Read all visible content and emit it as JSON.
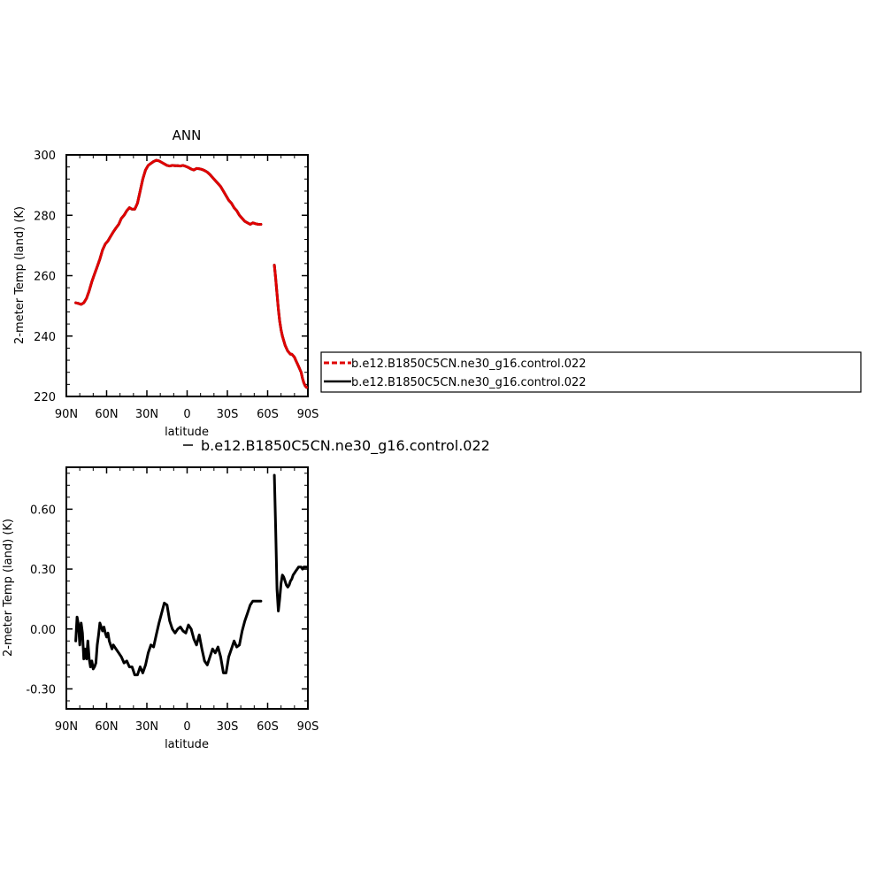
{
  "chart_data": [
    {
      "type": "line",
      "title": "ANN",
      "xlabel": "latitude",
      "ylabel": "2-meter Temp (land) (K)",
      "xlim": [
        90,
        -90
      ],
      "ylim": [
        220,
        300
      ],
      "xticks": [
        90,
        60,
        30,
        0,
        -30,
        -60,
        -90
      ],
      "xtick_labels": [
        "90N",
        "60N",
        "30N",
        "0",
        "30S",
        "60S",
        "90S"
      ],
      "yticks": [
        220,
        240,
        260,
        280,
        300
      ],
      "ytick_labels": [
        "220",
        "240",
        "260",
        "280",
        "300"
      ],
      "legend": {
        "placement": "right of plot",
        "entries": [
          {
            "label": "b.e12.B1850C5CN.ne30_g16.control.022",
            "color": "#e00000",
            "dash": "dashed"
          },
          {
            "label": "b.e12.B1850C5CN.ne30_g16.control.022",
            "color": "#000000",
            "dash": "solid"
          }
        ]
      },
      "series": [
        {
          "name": "b.e12.B1850C5CN.ne30_g16.control.022",
          "color": "#000000",
          "segments": [
            {
              "x": [
                83,
                81,
                79,
                77,
                75,
                73,
                71,
                69,
                67,
                65,
                63,
                61,
                59,
                57,
                55,
                53,
                51,
                49,
                47,
                45,
                43,
                41,
                39,
                37,
                35,
                33,
                31,
                29,
                27,
                25,
                23,
                21,
                19,
                17,
                15,
                13,
                11,
                9,
                7,
                5,
                3,
                1,
                -1,
                -3,
                -5,
                -7,
                -9,
                -11,
                -13,
                -15,
                -17,
                -19,
                -21,
                -23,
                -25,
                -27,
                -29,
                -31,
                -33,
                -35,
                -37,
                -39,
                -41,
                -43,
                -45,
                -47,
                -49,
                -51,
                -53,
                -55
              ],
              "y": [
                251,
                250.8,
                250.5,
                251,
                252.5,
                255,
                258,
                260.5,
                263,
                265.5,
                268.5,
                270.5,
                271.5,
                273,
                274.5,
                275.8,
                277,
                279,
                280,
                281.5,
                282.5,
                282,
                282,
                284,
                288,
                292,
                295,
                296.5,
                297.2,
                297.8,
                298.2,
                298,
                297.5,
                297,
                296.5,
                296.3,
                296.5,
                296.4,
                296.4,
                296.3,
                296.5,
                296.2,
                295.8,
                295.3,
                295,
                295.5,
                295.4,
                295.2,
                294.8,
                294.3,
                293.5,
                292.5,
                291.5,
                290.5,
                289.5,
                288,
                286.5,
                285,
                284,
                282.5,
                281.5,
                280,
                279,
                278,
                277.5,
                277,
                277.5,
                277.2,
                277,
                277
              ]
            },
            {
              "x": [
                -65,
                -66,
                -67,
                -68,
                -69,
                -70,
                -71,
                -72,
                -73,
                -74,
                -75,
                -76,
                -77,
                -78,
                -79,
                -80,
                -81,
                -82,
                -83,
                -84,
                -85,
                -86,
                -87,
                -88,
                -89
              ],
              "y": [
                263.5,
                259,
                254,
                249,
                245,
                242,
                240,
                238.5,
                237,
                236,
                235,
                234.5,
                234,
                234,
                233.5,
                233,
                232,
                231,
                230,
                229,
                228,
                226,
                224.5,
                223.5,
                223
              ]
            }
          ]
        },
        {
          "name": "b.e12.B1850C5CN.ne30_g16.control.022",
          "color": "#e00000",
          "dash": "dashed",
          "segments": [
            {
              "x": [
                83,
                81,
                79,
                77,
                75,
                73,
                71,
                69,
                67,
                65,
                63,
                61,
                59,
                57,
                55,
                53,
                51,
                49,
                47,
                45,
                43,
                41,
                39,
                37,
                35,
                33,
                31,
                29,
                27,
                25,
                23,
                21,
                19,
                17,
                15,
                13,
                11,
                9,
                7,
                5,
                3,
                1,
                -1,
                -3,
                -5,
                -7,
                -9,
                -11,
                -13,
                -15,
                -17,
                -19,
                -21,
                -23,
                -25,
                -27,
                -29,
                -31,
                -33,
                -35,
                -37,
                -39,
                -41,
                -43,
                -45,
                -47,
                -49,
                -51,
                -53,
                -55
              ],
              "y": [
                251,
                250.8,
                250.5,
                251,
                252.5,
                255,
                258,
                260.5,
                263,
                265.5,
                268.5,
                270.5,
                271.5,
                273,
                274.5,
                275.8,
                277,
                279,
                280,
                281.5,
                282.5,
                282,
                282,
                284,
                288,
                292,
                295,
                296.5,
                297.2,
                297.8,
                298.2,
                298,
                297.5,
                297,
                296.5,
                296.3,
                296.5,
                296.4,
                296.4,
                296.3,
                296.5,
                296.2,
                295.8,
                295.3,
                295,
                295.5,
                295.4,
                295.2,
                294.8,
                294.3,
                293.5,
                292.5,
                291.5,
                290.5,
                289.5,
                288,
                286.5,
                285,
                284,
                282.5,
                281.5,
                280,
                279,
                278,
                277.5,
                277,
                277.5,
                277.2,
                277,
                277
              ]
            },
            {
              "x": [
                -65,
                -66,
                -67,
                -68,
                -69,
                -70,
                -71,
                -72,
                -73,
                -74,
                -75,
                -76,
                -77,
                -78,
                -79,
                -80,
                -81,
                -82,
                -83,
                -84,
                -85,
                -86,
                -87,
                -88,
                -89
              ],
              "y": [
                263.5,
                259,
                254,
                249,
                245,
                242,
                240,
                238.5,
                237,
                236,
                235,
                234.5,
                234,
                234,
                233.5,
                233,
                232,
                231,
                230,
                229,
                228,
                226,
                224.5,
                223.5,
                223
              ]
            }
          ]
        }
      ]
    },
    {
      "type": "line",
      "title": "",
      "xlabel": "latitude",
      "ylabel": "2-meter Temp (land) (K)",
      "xlim": [
        90,
        -90
      ],
      "ylim": [
        -0.4,
        0.81
      ],
      "xticks": [
        90,
        60,
        30,
        0,
        -30,
        -60,
        -90
      ],
      "xtick_labels": [
        "90N",
        "60N",
        "30N",
        "0",
        "30S",
        "60S",
        "90S"
      ],
      "yticks": [
        -0.3,
        0.0,
        0.3,
        0.6
      ],
      "ytick_labels": [
        "-0.30",
        "0.00",
        "0.30",
        "0.60"
      ],
      "legend": {
        "placement": "above plot",
        "entries": [
          {
            "label": "b.e12.B1850C5CN.ne30_g16.control.022",
            "color": "#000000",
            "dash": "solid"
          }
        ]
      },
      "series": [
        {
          "name": "b.e12.B1850C5CN.ne30_g16.control.022",
          "color": "#000000",
          "segments": [
            {
              "x": [
                83,
                82,
                81,
                80,
                79,
                78,
                77,
                76,
                75,
                74,
                73,
                72,
                71,
                70,
                69,
                68,
                67,
                66,
                65,
                64,
                63,
                62,
                61,
                60,
                59,
                58,
                57,
                56,
                55,
                53,
                51,
                49,
                47,
                45,
                43,
                41,
                39,
                37,
                35,
                33,
                31,
                29,
                27,
                25,
                23,
                21,
                19,
                17,
                15,
                13,
                11,
                9,
                7,
                5,
                3,
                1,
                -1,
                -3,
                -5,
                -7,
                -9,
                -11,
                -13,
                -15,
                -17,
                -19,
                -21,
                -23,
                -25,
                -27,
                -29,
                -31,
                -33,
                -35,
                -37,
                -39,
                -41,
                -43,
                -45,
                -47,
                -49,
                -51,
                -53,
                -55
              ],
              "y": [
                -0.06,
                0.06,
                0.02,
                -0.08,
                0.03,
                -0.02,
                -0.15,
                -0.1,
                -0.15,
                -0.06,
                -0.15,
                -0.19,
                -0.16,
                -0.2,
                -0.19,
                -0.17,
                -0.08,
                -0.03,
                0.03,
                0.01,
                -0.01,
                0.01,
                -0.02,
                -0.04,
                -0.02,
                -0.06,
                -0.08,
                -0.1,
                -0.08,
                -0.1,
                -0.12,
                -0.14,
                -0.17,
                -0.16,
                -0.19,
                -0.19,
                -0.23,
                -0.23,
                -0.19,
                -0.22,
                -0.18,
                -0.12,
                -0.08,
                -0.09,
                -0.03,
                0.03,
                0.08,
                0.13,
                0.12,
                0.04,
                0.0,
                -0.02,
                0.0,
                0.01,
                -0.01,
                -0.02,
                0.02,
                0.0,
                -0.05,
                -0.08,
                -0.03,
                -0.1,
                -0.16,
                -0.18,
                -0.14,
                -0.1,
                -0.12,
                -0.09,
                -0.14,
                -0.22,
                -0.22,
                -0.14,
                -0.1,
                -0.06,
                -0.09,
                -0.08,
                -0.01,
                0.04,
                0.08,
                0.12,
                0.14,
                0.14,
                0.14,
                0.14
              ]
            },
            {
              "x": [
                -65,
                -66,
                -67,
                -68,
                -69,
                -70,
                -71,
                -72,
                -73,
                -74,
                -75,
                -76,
                -77,
                -78,
                -79,
                -80,
                -81,
                -82,
                -83,
                -84,
                -85,
                -86,
                -87,
                -88,
                -89
              ],
              "y": [
                0.77,
                0.5,
                0.2,
                0.09,
                0.15,
                0.23,
                0.27,
                0.26,
                0.24,
                0.22,
                0.21,
                0.22,
                0.24,
                0.25,
                0.27,
                0.28,
                0.29,
                0.3,
                0.31,
                0.31,
                0.31,
                0.3,
                0.31,
                0.31,
                0.31
              ]
            }
          ]
        }
      ]
    }
  ]
}
